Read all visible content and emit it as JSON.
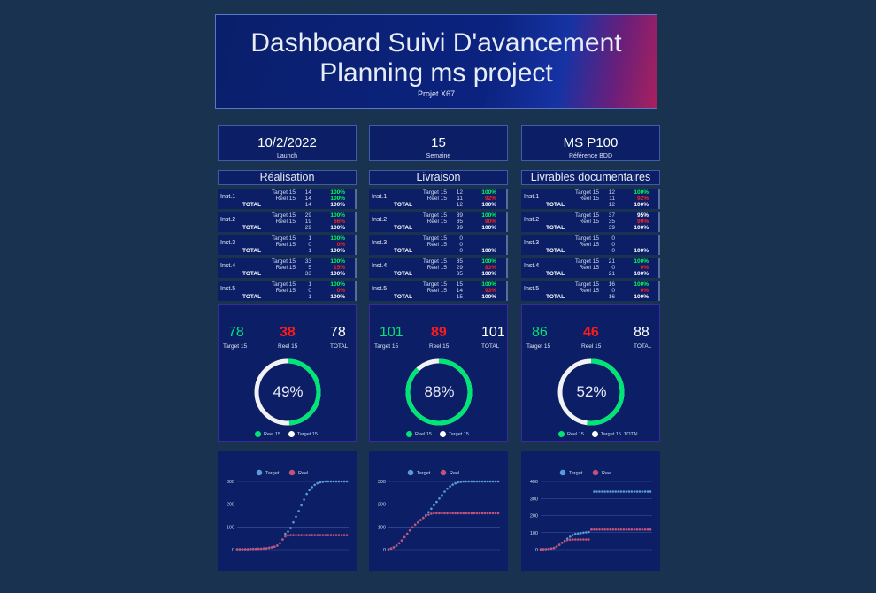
{
  "header": {
    "title_line1": "Dashboard Suivi D'avancement",
    "title_line2": "Planning ms project",
    "subtitle": "Projet X67"
  },
  "info": [
    {
      "value": "10/2/2022",
      "label": "Launch"
    },
    {
      "value": "15",
      "label": "Semaine"
    },
    {
      "value": "MS P100",
      "label": "Référence BDD"
    }
  ],
  "sections": [
    {
      "title": "Réalisation",
      "instances": [
        {
          "name": "Inst.1",
          "target_label": "Target 15",
          "target": "14",
          "target_pct": "100%",
          "target_color": "#00ff55",
          "reel_label": "Reel 15",
          "reel": "14",
          "reel_pct": "100%",
          "reel_color": "#00ff55",
          "total_label": "TOTAL",
          "total": "14",
          "total_pct": "100%"
        },
        {
          "name": "Inst.2",
          "target_label": "Target 15",
          "target": "29",
          "target_pct": "100%",
          "target_color": "#00ff55",
          "reel_label": "Reel 15",
          "reel": "19",
          "reel_pct": "66%",
          "reel_color": "#ff2020",
          "total_label": "TOTAL",
          "total": "29",
          "total_pct": "100%"
        },
        {
          "name": "Inst.3",
          "target_label": "Target 15",
          "target": "1",
          "target_pct": "100%",
          "target_color": "#00ff55",
          "reel_label": "Reel 15",
          "reel": "0",
          "reel_pct": "0%",
          "reel_color": "#ff2020",
          "total_label": "TOTAL",
          "total": "1",
          "total_pct": "100%"
        },
        {
          "name": "Inst.4",
          "target_label": "Target 15",
          "target": "33",
          "target_pct": "100%",
          "target_color": "#00ff55",
          "reel_label": "Reel 15",
          "reel": "5",
          "reel_pct": "15%",
          "reel_color": "#ff2020",
          "total_label": "TOTAL",
          "total": "33",
          "total_pct": "100%"
        },
        {
          "name": "Inst.5",
          "target_label": "Target 15",
          "target": "1",
          "target_pct": "100%",
          "target_color": "#00ff55",
          "reel_label": "Reel 15",
          "reel": "0",
          "reel_pct": "0%",
          "reel_color": "#ff2020",
          "total_label": "TOTAL",
          "total": "1",
          "total_pct": "100%"
        }
      ],
      "kpi": {
        "target": "78",
        "target_label": "Target 15",
        "reel": "38",
        "reel_label": "Reel 15",
        "total": "78",
        "total_label": "TOTAL"
      },
      "gauge": {
        "percent_text": "49%",
        "fraction": 0.49,
        "legend_reel": "Reel 15",
        "legend_target": "Target 15"
      },
      "chart_data": {
        "type": "scatter",
        "legend": [
          "Target",
          "Reel"
        ],
        "yticks": [
          0,
          100,
          200,
          300
        ],
        "ylim": [
          0,
          300
        ],
        "series": [
          {
            "name": "Target",
            "values": [
              2,
              2,
              2,
              2,
              2,
              3,
              3,
              3,
              4,
              4,
              5,
              6,
              8,
              10,
              13,
              18,
              28,
              45,
              70,
              80,
              95,
              120,
              145,
              170,
              195,
              220,
              245,
              262,
              275,
              285,
              292,
              296,
              298,
              300,
              300,
              300,
              300,
              300,
              300,
              300,
              300,
              300
            ]
          },
          {
            "name": "Reel",
            "values": [
              2,
              2,
              2,
              2,
              2,
              3,
              3,
              3,
              4,
              4,
              5,
              6,
              8,
              10,
              13,
              18,
              28,
              45,
              58,
              62,
              64,
              64,
              64,
              64,
              64,
              64,
              64,
              64,
              64,
              64,
              64,
              64,
              64,
              64,
              64,
              64,
              64,
              64,
              64,
              64,
              64,
              64
            ]
          }
        ]
      }
    },
    {
      "title": "Livraison",
      "instances": [
        {
          "name": "Inst.1",
          "target_label": "Target 15",
          "target": "12",
          "target_pct": "100%",
          "target_color": "#00ff55",
          "reel_label": "Reel 15",
          "reel": "11",
          "reel_pct": "92%",
          "reel_color": "#ff2020",
          "total_label": "TOTAL",
          "total": "12",
          "total_pct": "100%"
        },
        {
          "name": "Inst.2",
          "target_label": "Target 15",
          "target": "39",
          "target_pct": "100%",
          "target_color": "#00ff55",
          "reel_label": "Reel 15",
          "reel": "35",
          "reel_pct": "90%",
          "reel_color": "#ff2020",
          "total_label": "TOTAL",
          "total": "39",
          "total_pct": "100%"
        },
        {
          "name": "Inst.3",
          "target_label": "Target 15",
          "target": "0",
          "target_pct": "",
          "target_color": "#00ff55",
          "reel_label": "Reel 15",
          "reel": "0",
          "reel_pct": "",
          "reel_color": "#ff2020",
          "total_label": "TOTAL",
          "total": "0",
          "total_pct": "100%"
        },
        {
          "name": "Inst.4",
          "target_label": "Target 15",
          "target": "35",
          "target_pct": "100%",
          "target_color": "#00ff55",
          "reel_label": "Reel 15",
          "reel": "29",
          "reel_pct": "83%",
          "reel_color": "#ff2020",
          "total_label": "TOTAL",
          "total": "35",
          "total_pct": "100%"
        },
        {
          "name": "Inst.5",
          "target_label": "Target 15",
          "target": "15",
          "target_pct": "100%",
          "target_color": "#00ff55",
          "reel_label": "Reel 15",
          "reel": "14",
          "reel_pct": "93%",
          "reel_color": "#ff2020",
          "total_label": "TOTAL",
          "total": "15",
          "total_pct": "100%"
        }
      ],
      "kpi": {
        "target": "101",
        "target_label": "Target 15",
        "reel": "89",
        "reel_label": "Reel 15",
        "total": "101",
        "total_label": "TOTAL"
      },
      "gauge": {
        "percent_text": "88%",
        "fraction": 0.88,
        "legend_reel": "Reel 15",
        "legend_target": "Target 15"
      },
      "chart_data": {
        "type": "scatter",
        "legend": [
          "Target",
          "Reel"
        ],
        "yticks": [
          0,
          100,
          200,
          300
        ],
        "ylim": [
          0,
          300
        ],
        "series": [
          {
            "name": "Target",
            "values": [
              2,
              5,
              10,
              18,
              28,
              40,
              55,
              70,
              85,
              98,
              110,
              120,
              130,
              140,
              152,
              165,
              180,
              195,
              210,
              225,
              240,
              255,
              268,
              278,
              286,
              292,
              296,
              298,
              300,
              300,
              300,
              300,
              300,
              300,
              300,
              300,
              300,
              300,
              300,
              300,
              300,
              300
            ]
          },
          {
            "name": "Reel",
            "values": [
              2,
              5,
              10,
              18,
              28,
              40,
              55,
              70,
              85,
              98,
              110,
              120,
              130,
              140,
              148,
              154,
              158,
              160,
              160,
              160,
              160,
              160,
              160,
              160,
              160,
              160,
              160,
              160,
              160,
              160,
              160,
              160,
              160,
              160,
              160,
              160,
              160,
              160,
              160,
              160,
              160,
              160
            ]
          }
        ]
      }
    },
    {
      "title": "Livrables documentaires",
      "instances": [
        {
          "name": "Inst.1",
          "target_label": "Target 15",
          "target": "12",
          "target_pct": "100%",
          "target_color": "#00ff55",
          "reel_label": "Reel 15",
          "reel": "11",
          "reel_pct": "92%",
          "reel_color": "#ff2020",
          "total_label": "TOTAL",
          "total": "12",
          "total_pct": "100%"
        },
        {
          "name": "Inst.2",
          "target_label": "Target 15",
          "target": "37",
          "target_pct": "95%",
          "target_color": "#ffffff",
          "reel_label": "Reel 15",
          "reel": "35",
          "reel_pct": "90%",
          "reel_color": "#ff2020",
          "total_label": "TOTAL",
          "total": "39",
          "total_pct": "100%"
        },
        {
          "name": "Inst.3",
          "target_label": "Target 15",
          "target": "0",
          "target_pct": "",
          "target_color": "#00ff55",
          "reel_label": "Reel 15",
          "reel": "0",
          "reel_pct": "",
          "reel_color": "#ff2020",
          "total_label": "TOTAL",
          "total": "0",
          "total_pct": "100%"
        },
        {
          "name": "Inst.4",
          "target_label": "Target 15",
          "target": "21",
          "target_pct": "100%",
          "target_color": "#00ff55",
          "reel_label": "Reel 15",
          "reel": "0",
          "reel_pct": "0%",
          "reel_color": "#ff2020",
          "total_label": "TOTAL",
          "total": "21",
          "total_pct": "100%"
        },
        {
          "name": "Inst.5",
          "target_label": "Target 15",
          "target": "16",
          "target_pct": "100%",
          "target_color": "#00ff55",
          "reel_label": "Reel 15",
          "reel": "0",
          "reel_pct": "0%",
          "reel_color": "#ff2020",
          "total_label": "TOTAL",
          "total": "16",
          "total_pct": "100%"
        }
      ],
      "kpi": {
        "target": "86",
        "target_label": "Target 15",
        "reel": "46",
        "reel_label": "Reel 15",
        "total": "88",
        "total_label": "TOTAL"
      },
      "gauge": {
        "percent_text": "52%",
        "fraction": 0.52,
        "legend_reel": "Reel 15",
        "legend_target": "Target 15",
        "legend_total": "TOTAL"
      },
      "chart_data": {
        "type": "scatter",
        "legend": [
          "Target",
          "Reel"
        ],
        "yticks": [
          0,
          100,
          200,
          300,
          400
        ],
        "ylim": [
          0,
          400
        ],
        "series": [
          {
            "name": "Target",
            "values": [
              2,
              2,
              3,
              4,
              6,
              10,
              18,
              28,
              40,
              52,
              64,
              76,
              86,
              92,
              95,
              97,
              100,
              102,
              104,
              118,
              340,
              340,
              340,
              340,
              340,
              340,
              340,
              340,
              340,
              340,
              340,
              340,
              340,
              340,
              340,
              340,
              340,
              340,
              340,
              340,
              340,
              340
            ]
          },
          {
            "name": "Reel",
            "values": [
              2,
              2,
              3,
              4,
              6,
              10,
              18,
              28,
              40,
              50,
              56,
              58,
              60,
              60,
              60,
              60,
              60,
              60,
              60,
              118,
              118,
              118,
              118,
              118,
              118,
              118,
              118,
              118,
              118,
              118,
              118,
              118,
              118,
              118,
              118,
              118,
              118,
              118,
              118,
              118,
              118,
              118
            ]
          }
        ]
      }
    }
  ],
  "colors": {
    "green": "#00e676",
    "red": "#ff1a1a",
    "target_marker": "#5b9bd5",
    "reel_marker": "#c2527a",
    "panel": "#0c1f66"
  }
}
